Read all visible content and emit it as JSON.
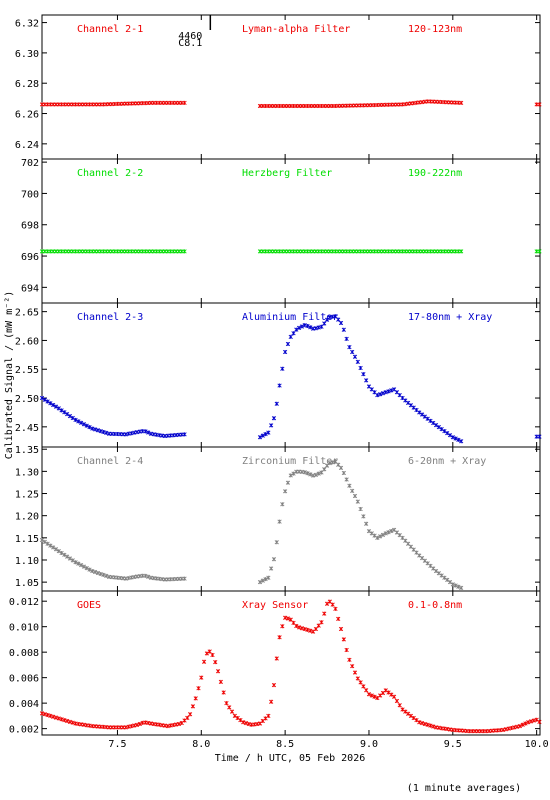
{
  "figure": {
    "ylabel": "Calibrated Signal / (mW m⁻²)",
    "xlabel": "Time / h UTC, 05 Feb 2026",
    "footnote": "(1 minute averages)",
    "event": {
      "number": "4460",
      "class": "C8.1",
      "time": 8.03
    }
  },
  "colors": {
    "red": "#ee0000",
    "green": "#00dd00",
    "blue": "#0000cc",
    "gray": "#808080",
    "axis": "#000000"
  },
  "chart_data": [
    {
      "type": "scatter",
      "channel": "Channel 2-1",
      "filter": "Lyman-alpha Filter",
      "band": "120-123nm",
      "color": "red",
      "ylim": [
        6.23,
        6.325
      ],
      "yticks": [
        6.24,
        6.26,
        6.28,
        6.3,
        6.32
      ],
      "ytick_labels": [
        "6.24",
        "6.26",
        "6.28",
        "6.30",
        "6.32"
      ],
      "xlim": [
        7.05,
        10.02
      ],
      "segments": [
        {
          "x": [
            7.05,
            7.4,
            7.7,
            7.9
          ],
          "y": [
            6.266,
            6.266,
            6.267,
            6.267
          ]
        },
        {
          "x": [
            8.35,
            8.8,
            9.2,
            9.35,
            9.55
          ],
          "y": [
            6.265,
            6.265,
            6.266,
            6.268,
            6.267
          ]
        },
        {
          "x": [
            10.0,
            10.02
          ],
          "y": [
            6.266,
            6.266
          ]
        }
      ]
    },
    {
      "type": "scatter",
      "channel": "Channel 2-2",
      "filter": "Herzberg Filter",
      "band": "190-222nm",
      "color": "green",
      "ylim": [
        693.0,
        702.2
      ],
      "yticks": [
        694,
        696,
        698,
        700,
        702
      ],
      "ytick_labels": [
        "694",
        "696",
        "698",
        "700",
        "702"
      ],
      "xlim": [
        7.05,
        10.02
      ],
      "segments": [
        {
          "x": [
            7.05,
            7.9
          ],
          "y": [
            696.3,
            696.3
          ]
        },
        {
          "x": [
            8.35,
            9.55
          ],
          "y": [
            696.3,
            696.3
          ]
        },
        {
          "x": [
            10.0,
            10.02
          ],
          "y": [
            696.3,
            696.3
          ]
        }
      ]
    },
    {
      "type": "scatter",
      "channel": "Channel 2-3",
      "filter": "Aluminium Filter",
      "band": "17-80nm + Xray",
      "color": "blue",
      "ylim": [
        2.415,
        2.665
      ],
      "yticks": [
        2.45,
        2.5,
        2.55,
        2.6,
        2.65
      ],
      "ytick_labels": [
        "2.45",
        "2.50",
        "2.55",
        "2.60",
        "2.65"
      ],
      "xlim": [
        7.05,
        10.02
      ],
      "segments": [
        {
          "x": [
            7.05,
            7.15,
            7.25,
            7.35,
            7.45,
            7.55,
            7.62,
            7.66,
            7.7,
            7.78,
            7.9
          ],
          "y": [
            2.5,
            2.482,
            2.462,
            2.447,
            2.438,
            2.437,
            2.441,
            2.443,
            2.438,
            2.434,
            2.437
          ]
        },
        {
          "x": [
            8.35,
            8.4,
            8.44,
            8.46,
            8.48,
            8.5,
            8.53,
            8.57,
            8.62,
            8.67,
            8.72,
            8.76,
            8.8,
            8.84,
            8.88,
            8.93,
            9.0,
            9.05,
            9.1,
            9.15,
            9.2,
            9.3,
            9.4,
            9.5,
            9.55
          ],
          "y": [
            2.432,
            2.44,
            2.47,
            2.51,
            2.545,
            2.58,
            2.605,
            2.62,
            2.627,
            2.62,
            2.624,
            2.64,
            2.642,
            2.628,
            2.59,
            2.565,
            2.52,
            2.505,
            2.51,
            2.515,
            2.5,
            2.475,
            2.453,
            2.432,
            2.425
          ]
        },
        {
          "x": [
            10.0,
            10.02
          ],
          "y": [
            2.433,
            2.433
          ]
        }
      ]
    },
    {
      "type": "scatter",
      "channel": "Channel 2-4",
      "filter": "Zirconium Filter",
      "band": "6-20nm + Xray",
      "color": "gray",
      "ylim": [
        1.03,
        1.355
      ],
      "yticks": [
        1.05,
        1.1,
        1.15,
        1.2,
        1.25,
        1.3,
        1.35
      ],
      "ytick_labels": [
        "1.05",
        "1.10",
        "1.15",
        "1.20",
        "1.25",
        "1.30",
        "1.35"
      ],
      "xlim": [
        7.05,
        10.02
      ],
      "segments": [
        {
          "x": [
            7.05,
            7.15,
            7.25,
            7.35,
            7.45,
            7.55,
            7.62,
            7.66,
            7.7,
            7.78,
            7.9
          ],
          "y": [
            1.145,
            1.12,
            1.095,
            1.075,
            1.062,
            1.058,
            1.063,
            1.065,
            1.06,
            1.056,
            1.058
          ]
        },
        {
          "x": [
            8.35,
            8.4,
            8.44,
            8.46,
            8.48,
            8.5,
            8.53,
            8.57,
            8.62,
            8.67,
            8.72,
            8.76,
            8.8,
            8.84,
            8.88,
            8.93,
            9.0,
            9.05,
            9.1,
            9.15,
            9.2,
            9.3,
            9.4,
            9.5,
            9.55
          ],
          "y": [
            1.05,
            1.06,
            1.11,
            1.17,
            1.22,
            1.255,
            1.29,
            1.3,
            1.298,
            1.29,
            1.298,
            1.318,
            1.322,
            1.305,
            1.27,
            1.235,
            1.165,
            1.15,
            1.16,
            1.168,
            1.15,
            1.11,
            1.075,
            1.045,
            1.037
          ]
        }
      ]
    },
    {
      "type": "scatter",
      "channel": "GOES",
      "filter": "Xray Sensor",
      "band": "0.1-0.8nm",
      "color": "red",
      "ylim": [
        0.0015,
        0.0128
      ],
      "yticks": [
        0.002,
        0.004,
        0.006,
        0.008,
        0.01,
        0.012
      ],
      "ytick_labels": [
        "0.002",
        "0.004",
        "0.006",
        "0.008",
        "0.010",
        "0.012"
      ],
      "xlim": [
        7.05,
        10.02
      ],
      "segments": [
        {
          "x": [
            7.05,
            7.15,
            7.25,
            7.35,
            7.45,
            7.55,
            7.62,
            7.66,
            7.7,
            7.8,
            7.88,
            7.93,
            7.97,
            8.0,
            8.02,
            8.04,
            8.06,
            8.09,
            8.12,
            8.15,
            8.2,
            8.25,
            8.3,
            8.35,
            8.4,
            8.43,
            8.45,
            8.47,
            8.5,
            8.53,
            8.57,
            8.62,
            8.67,
            8.72,
            8.75,
            8.77,
            8.8,
            8.84,
            8.88,
            8.93,
            9.0,
            9.05,
            9.1,
            9.15,
            9.2,
            9.3,
            9.4,
            9.5,
            9.6,
            9.7,
            9.8,
            9.9,
            9.95,
            10.0,
            10.02
          ],
          "y": [
            0.0032,
            0.0028,
            0.0024,
            0.0022,
            0.0021,
            0.0021,
            0.0023,
            0.0025,
            0.0024,
            0.0022,
            0.0024,
            0.003,
            0.0045,
            0.006,
            0.0075,
            0.0081,
            0.008,
            0.007,
            0.0055,
            0.004,
            0.003,
            0.0025,
            0.0023,
            0.0024,
            0.003,
            0.005,
            0.0075,
            0.0095,
            0.0107,
            0.0106,
            0.01,
            0.0098,
            0.0096,
            0.0104,
            0.0118,
            0.012,
            0.0114,
            0.0095,
            0.0075,
            0.006,
            0.0047,
            0.0044,
            0.005,
            0.0045,
            0.0035,
            0.0025,
            0.0021,
            0.0019,
            0.0018,
            0.0018,
            0.0019,
            0.0022,
            0.0025,
            0.0027,
            0.0025
          ]
        }
      ]
    }
  ],
  "xaxis": {
    "ticks": [
      7.5,
      8.0,
      8.5,
      9.0,
      9.5,
      10.0
    ],
    "tick_labels": [
      "7.5",
      "8.0",
      "8.5",
      "9.0",
      "9.5",
      "10.0"
    ]
  }
}
